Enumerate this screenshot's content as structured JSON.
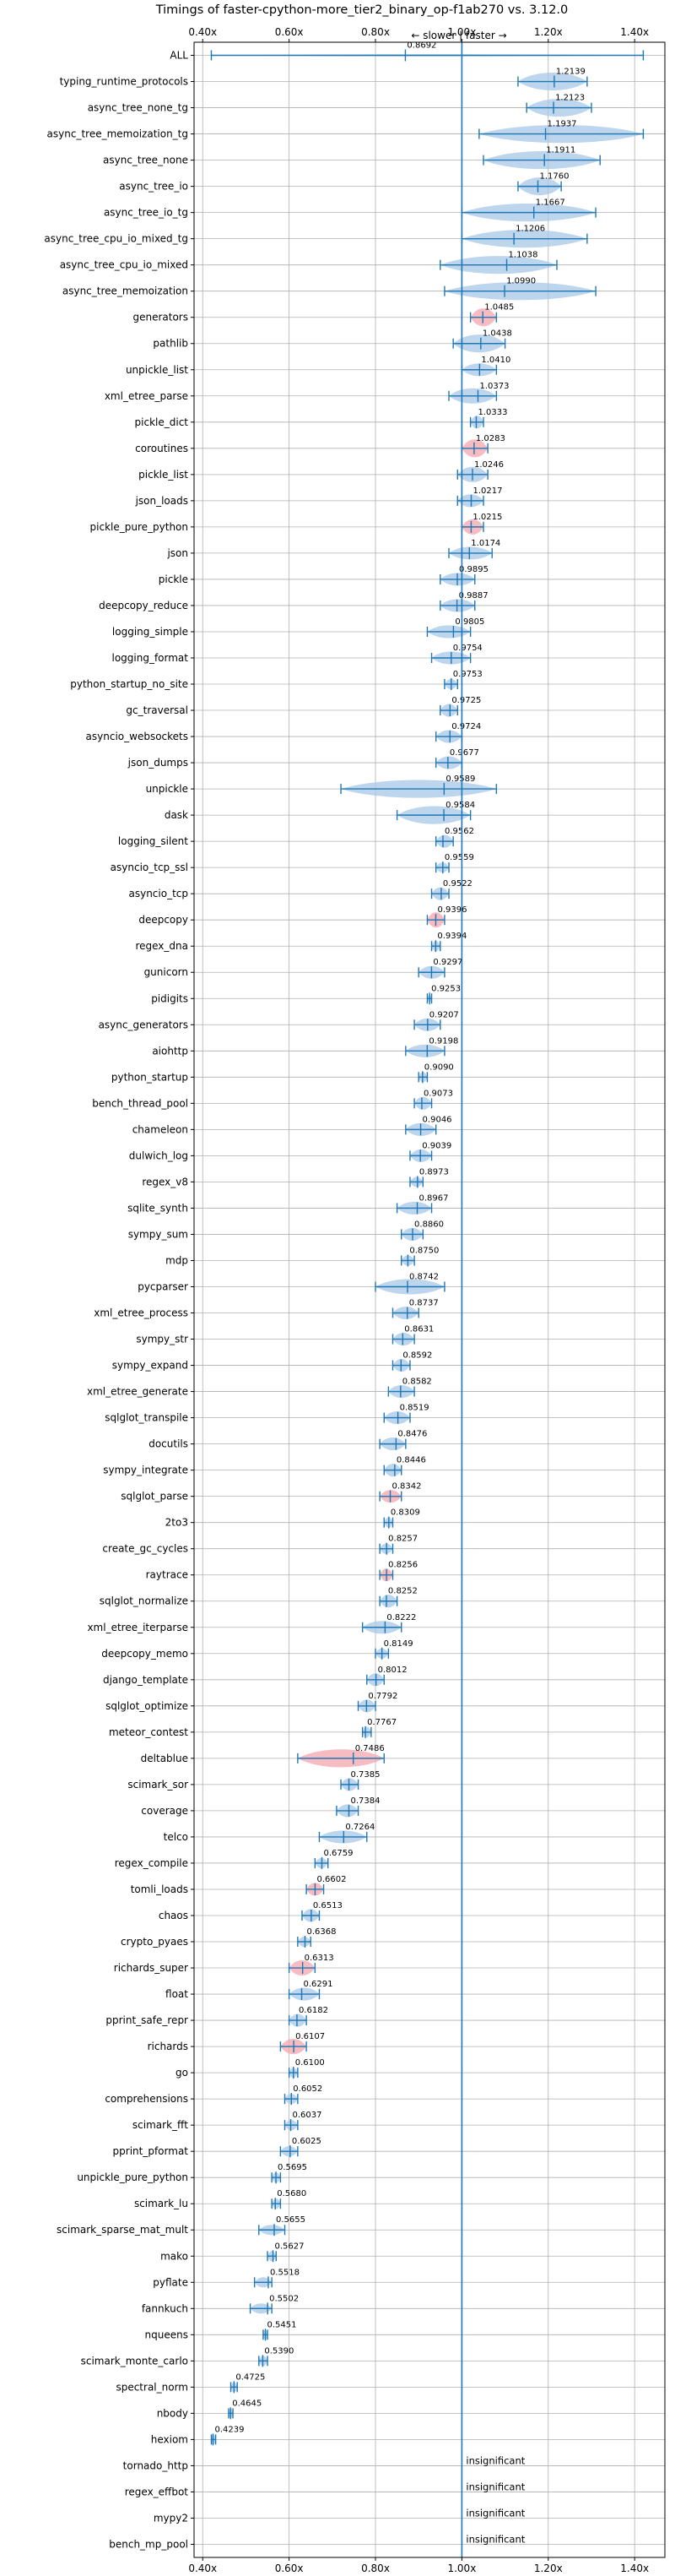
{
  "chart_data": {
    "type": "violin",
    "title": "Timings of faster-cpython-more_tier2_binary_op-f1ab270 vs. 3.12.0",
    "top_annotation": "← slower | faster →",
    "xlim": [
      0.38,
      1.47
    ],
    "x_ticks": [
      0.4,
      0.6,
      0.8,
      1.0,
      1.2,
      1.4
    ],
    "x_tick_labels": [
      "0.40x",
      "0.60x",
      "0.80x",
      "1.00x",
      "1.20x",
      "1.40x"
    ],
    "reference_line": 1.0,
    "grid": true,
    "colors": {
      "faster": "#a7c7e7",
      "slower": "#f4a6ad",
      "whisker": "#1f77b4",
      "reference": "#1f77b4"
    },
    "insignificant_label": "insignificant",
    "benchmarks": [
      {
        "name": "ALL",
        "value": 0.8692,
        "label": "0.8692",
        "lo": 0.42,
        "hi": 1.42,
        "w": 0.08,
        "color": "faster"
      },
      {
        "name": "typing_runtime_protocols",
        "value": 1.2139,
        "label": "1.2139",
        "lo": 1.13,
        "hi": 1.29,
        "w": 0.7,
        "color": "faster"
      },
      {
        "name": "async_tree_none_tg",
        "value": 1.2123,
        "label": "1.2123",
        "lo": 1.15,
        "hi": 1.3,
        "w": 0.7,
        "color": "faster"
      },
      {
        "name": "async_tree_memoization_tg",
        "value": 1.1937,
        "label": "1.1937",
        "lo": 1.04,
        "hi": 1.42,
        "w": 0.7,
        "color": "faster"
      },
      {
        "name": "async_tree_none",
        "value": 1.1911,
        "label": "1.1911",
        "lo": 1.05,
        "hi": 1.32,
        "w": 0.7,
        "color": "faster"
      },
      {
        "name": "async_tree_io",
        "value": 1.176,
        "label": "1.1760",
        "lo": 1.13,
        "hi": 1.23,
        "w": 0.7,
        "color": "faster"
      },
      {
        "name": "async_tree_io_tg",
        "value": 1.1667,
        "label": "1.1667",
        "lo": 1.0,
        "hi": 1.31,
        "w": 0.7,
        "color": "faster"
      },
      {
        "name": "async_tree_cpu_io_mixed_tg",
        "value": 1.1206,
        "label": "1.1206",
        "lo": 1.0,
        "hi": 1.29,
        "w": 0.7,
        "color": "faster"
      },
      {
        "name": "async_tree_cpu_io_mixed",
        "value": 1.1038,
        "label": "1.1038",
        "lo": 0.95,
        "hi": 1.22,
        "w": 0.7,
        "color": "faster"
      },
      {
        "name": "async_tree_memoization",
        "value": 1.099,
        "label": "1.0990",
        "lo": 0.96,
        "hi": 1.31,
        "w": 0.7,
        "color": "faster"
      },
      {
        "name": "generators",
        "value": 1.0485,
        "label": "1.0485",
        "lo": 1.02,
        "hi": 1.08,
        "w": 0.7,
        "color": "slower"
      },
      {
        "name": "pathlib",
        "value": 1.0438,
        "label": "1.0438",
        "lo": 0.98,
        "hi": 1.1,
        "w": 0.7,
        "color": "faster"
      },
      {
        "name": "unpickle_list",
        "value": 1.041,
        "label": "1.0410",
        "lo": 1.0,
        "hi": 1.08,
        "w": 0.5,
        "color": "faster"
      },
      {
        "name": "xml_etree_parse",
        "value": 1.0373,
        "label": "1.0373",
        "lo": 0.97,
        "hi": 1.08,
        "w": 0.6,
        "color": "faster"
      },
      {
        "name": "pickle_dict",
        "value": 1.0333,
        "label": "1.0333",
        "lo": 1.02,
        "hi": 1.05,
        "w": 0.5,
        "color": "faster"
      },
      {
        "name": "coroutines",
        "value": 1.0283,
        "label": "1.0283",
        "lo": 1.0,
        "hi": 1.06,
        "w": 0.7,
        "color": "slower"
      },
      {
        "name": "pickle_list",
        "value": 1.0246,
        "label": "1.0246",
        "lo": 0.99,
        "hi": 1.06,
        "w": 0.6,
        "color": "faster"
      },
      {
        "name": "json_loads",
        "value": 1.0217,
        "label": "1.0217",
        "lo": 0.99,
        "hi": 1.05,
        "w": 0.5,
        "color": "faster"
      },
      {
        "name": "pickle_pure_python",
        "value": 1.0215,
        "label": "1.0215",
        "lo": 1.0,
        "hi": 1.05,
        "w": 0.6,
        "color": "slower"
      },
      {
        "name": "json",
        "value": 1.0174,
        "label": "1.0174",
        "lo": 0.97,
        "hi": 1.07,
        "w": 0.5,
        "color": "faster"
      },
      {
        "name": "pickle",
        "value": 0.9895,
        "label": "0.9895",
        "lo": 0.95,
        "hi": 1.03,
        "w": 0.5,
        "color": "faster"
      },
      {
        "name": "deepcopy_reduce",
        "value": 0.9887,
        "label": "0.9887",
        "lo": 0.95,
        "hi": 1.03,
        "w": 0.5,
        "color": "faster"
      },
      {
        "name": "logging_simple",
        "value": 0.9805,
        "label": "0.9805",
        "lo": 0.92,
        "hi": 1.02,
        "w": 0.5,
        "color": "faster"
      },
      {
        "name": "logging_format",
        "value": 0.9754,
        "label": "0.9754",
        "lo": 0.93,
        "hi": 1.02,
        "w": 0.5,
        "color": "faster"
      },
      {
        "name": "python_startup_no_site",
        "value": 0.9753,
        "label": "0.9753",
        "lo": 0.96,
        "hi": 0.99,
        "w": 0.4,
        "color": "faster"
      },
      {
        "name": "gc_traversal",
        "value": 0.9725,
        "label": "0.9725",
        "lo": 0.95,
        "hi": 0.99,
        "w": 0.5,
        "color": "faster"
      },
      {
        "name": "asyncio_websockets",
        "value": 0.9724,
        "label": "0.9724",
        "lo": 0.94,
        "hi": 1.0,
        "w": 0.5,
        "color": "faster"
      },
      {
        "name": "json_dumps",
        "value": 0.9677,
        "label": "0.9677",
        "lo": 0.94,
        "hi": 1.0,
        "w": 0.5,
        "color": "faster"
      },
      {
        "name": "unpickle",
        "value": 0.9589,
        "label": "0.9589",
        "lo": 0.72,
        "hi": 1.08,
        "w": 0.7,
        "color": "faster"
      },
      {
        "name": "dask",
        "value": 0.9584,
        "label": "0.9584",
        "lo": 0.85,
        "hi": 1.02,
        "w": 0.7,
        "color": "faster"
      },
      {
        "name": "logging_silent",
        "value": 0.9562,
        "label": "0.9562",
        "lo": 0.94,
        "hi": 0.98,
        "w": 0.5,
        "color": "faster"
      },
      {
        "name": "asyncio_tcp_ssl",
        "value": 0.9559,
        "label": "0.9559",
        "lo": 0.94,
        "hi": 0.97,
        "w": 0.4,
        "color": "faster"
      },
      {
        "name": "asyncio_tcp",
        "value": 0.9522,
        "label": "0.9522",
        "lo": 0.93,
        "hi": 0.97,
        "w": 0.5,
        "color": "faster"
      },
      {
        "name": "deepcopy",
        "value": 0.9396,
        "label": "0.9396",
        "lo": 0.92,
        "hi": 0.96,
        "w": 0.6,
        "color": "slower"
      },
      {
        "name": "regex_dna",
        "value": 0.9394,
        "label": "0.9394",
        "lo": 0.93,
        "hi": 0.95,
        "w": 0.4,
        "color": "faster"
      },
      {
        "name": "gunicorn",
        "value": 0.9297,
        "label": "0.9297",
        "lo": 0.9,
        "hi": 0.96,
        "w": 0.5,
        "color": "faster"
      },
      {
        "name": "pidigits",
        "value": 0.9253,
        "label": "0.9253",
        "lo": 0.92,
        "hi": 0.93,
        "w": 0.3,
        "color": "faster"
      },
      {
        "name": "async_generators",
        "value": 0.9207,
        "label": "0.9207",
        "lo": 0.89,
        "hi": 0.95,
        "w": 0.5,
        "color": "faster"
      },
      {
        "name": "aiohttp",
        "value": 0.9198,
        "label": "0.9198",
        "lo": 0.87,
        "hi": 0.96,
        "w": 0.5,
        "color": "faster"
      },
      {
        "name": "python_startup",
        "value": 0.909,
        "label": "0.9090",
        "lo": 0.9,
        "hi": 0.92,
        "w": 0.4,
        "color": "faster"
      },
      {
        "name": "bench_thread_pool",
        "value": 0.9073,
        "label": "0.9073",
        "lo": 0.89,
        "hi": 0.93,
        "w": 0.5,
        "color": "faster"
      },
      {
        "name": "chameleon",
        "value": 0.9046,
        "label": "0.9046",
        "lo": 0.87,
        "hi": 0.94,
        "w": 0.5,
        "color": "faster"
      },
      {
        "name": "dulwich_log",
        "value": 0.9039,
        "label": "0.9039",
        "lo": 0.88,
        "hi": 0.93,
        "w": 0.5,
        "color": "faster"
      },
      {
        "name": "regex_v8",
        "value": 0.8973,
        "label": "0.8973",
        "lo": 0.88,
        "hi": 0.91,
        "w": 0.4,
        "color": "faster"
      },
      {
        "name": "sqlite_synth",
        "value": 0.8967,
        "label": "0.8967",
        "lo": 0.85,
        "hi": 0.93,
        "w": 0.5,
        "color": "faster"
      },
      {
        "name": "sympy_sum",
        "value": 0.886,
        "label": "0.8860",
        "lo": 0.86,
        "hi": 0.91,
        "w": 0.5,
        "color": "faster"
      },
      {
        "name": "mdp",
        "value": 0.875,
        "label": "0.8750",
        "lo": 0.86,
        "hi": 0.89,
        "w": 0.4,
        "color": "faster"
      },
      {
        "name": "pycparser",
        "value": 0.8742,
        "label": "0.8742",
        "lo": 0.8,
        "hi": 0.96,
        "w": 0.6,
        "color": "faster"
      },
      {
        "name": "xml_etree_process",
        "value": 0.8737,
        "label": "0.8737",
        "lo": 0.84,
        "hi": 0.9,
        "w": 0.5,
        "color": "faster"
      },
      {
        "name": "sympy_str",
        "value": 0.8631,
        "label": "0.8631",
        "lo": 0.84,
        "hi": 0.89,
        "w": 0.5,
        "color": "faster"
      },
      {
        "name": "sympy_expand",
        "value": 0.8592,
        "label": "0.8592",
        "lo": 0.84,
        "hi": 0.88,
        "w": 0.5,
        "color": "faster"
      },
      {
        "name": "xml_etree_generate",
        "value": 0.8582,
        "label": "0.8582",
        "lo": 0.83,
        "hi": 0.89,
        "w": 0.5,
        "color": "faster"
      },
      {
        "name": "sqlglot_transpile",
        "value": 0.8519,
        "label": "0.8519",
        "lo": 0.82,
        "hi": 0.88,
        "w": 0.5,
        "color": "faster"
      },
      {
        "name": "docutils",
        "value": 0.8476,
        "label": "0.8476",
        "lo": 0.81,
        "hi": 0.87,
        "w": 0.5,
        "color": "faster"
      },
      {
        "name": "sympy_integrate",
        "value": 0.8446,
        "label": "0.8446",
        "lo": 0.82,
        "hi": 0.86,
        "w": 0.5,
        "color": "faster"
      },
      {
        "name": "sqlglot_parse",
        "value": 0.8342,
        "label": "0.8342",
        "lo": 0.81,
        "hi": 0.86,
        "w": 0.5,
        "color": "slower"
      },
      {
        "name": "2to3",
        "value": 0.8309,
        "label": "0.8309",
        "lo": 0.82,
        "hi": 0.84,
        "w": 0.4,
        "color": "faster"
      },
      {
        "name": "create_gc_cycles",
        "value": 0.8257,
        "label": "0.8257",
        "lo": 0.81,
        "hi": 0.84,
        "w": 0.4,
        "color": "faster"
      },
      {
        "name": "raytrace",
        "value": 0.8256,
        "label": "0.8256",
        "lo": 0.81,
        "hi": 0.84,
        "w": 0.5,
        "color": "slower"
      },
      {
        "name": "sqlglot_normalize",
        "value": 0.8252,
        "label": "0.8252",
        "lo": 0.81,
        "hi": 0.85,
        "w": 0.5,
        "color": "faster"
      },
      {
        "name": "xml_etree_iterparse",
        "value": 0.8222,
        "label": "0.8222",
        "lo": 0.77,
        "hi": 0.86,
        "w": 0.5,
        "color": "faster"
      },
      {
        "name": "deepcopy_memo",
        "value": 0.8149,
        "label": "0.8149",
        "lo": 0.8,
        "hi": 0.83,
        "w": 0.4,
        "color": "faster"
      },
      {
        "name": "django_template",
        "value": 0.8012,
        "label": "0.8012",
        "lo": 0.78,
        "hi": 0.82,
        "w": 0.5,
        "color": "faster"
      },
      {
        "name": "sqlglot_optimize",
        "value": 0.7792,
        "label": "0.7792",
        "lo": 0.76,
        "hi": 0.8,
        "w": 0.5,
        "color": "faster"
      },
      {
        "name": "meteor_contest",
        "value": 0.7767,
        "label": "0.7767",
        "lo": 0.77,
        "hi": 0.79,
        "w": 0.4,
        "color": "faster"
      },
      {
        "name": "deltablue",
        "value": 0.7486,
        "label": "0.7486",
        "lo": 0.62,
        "hi": 0.82,
        "w": 0.7,
        "color": "slower"
      },
      {
        "name": "scimark_sor",
        "value": 0.7385,
        "label": "0.7385",
        "lo": 0.72,
        "hi": 0.76,
        "w": 0.5,
        "color": "faster"
      },
      {
        "name": "coverage",
        "value": 0.7384,
        "label": "0.7384",
        "lo": 0.71,
        "hi": 0.76,
        "w": 0.5,
        "color": "faster"
      },
      {
        "name": "telco",
        "value": 0.7264,
        "label": "0.7264",
        "lo": 0.67,
        "hi": 0.78,
        "w": 0.5,
        "color": "faster"
      },
      {
        "name": "regex_compile",
        "value": 0.6759,
        "label": "0.6759",
        "lo": 0.66,
        "hi": 0.69,
        "w": 0.4,
        "color": "faster"
      },
      {
        "name": "tomli_loads",
        "value": 0.6602,
        "label": "0.6602",
        "lo": 0.64,
        "hi": 0.68,
        "w": 0.5,
        "color": "slower"
      },
      {
        "name": "chaos",
        "value": 0.6513,
        "label": "0.6513",
        "lo": 0.63,
        "hi": 0.67,
        "w": 0.5,
        "color": "faster"
      },
      {
        "name": "crypto_pyaes",
        "value": 0.6368,
        "label": "0.6368",
        "lo": 0.62,
        "hi": 0.65,
        "w": 0.4,
        "color": "faster"
      },
      {
        "name": "richards_super",
        "value": 0.6313,
        "label": "0.6313",
        "lo": 0.6,
        "hi": 0.66,
        "w": 0.6,
        "color": "slower"
      },
      {
        "name": "float",
        "value": 0.6291,
        "label": "0.6291",
        "lo": 0.6,
        "hi": 0.67,
        "w": 0.5,
        "color": "faster"
      },
      {
        "name": "pprint_safe_repr",
        "value": 0.6182,
        "label": "0.6182",
        "lo": 0.6,
        "hi": 0.64,
        "w": 0.5,
        "color": "faster"
      },
      {
        "name": "richards",
        "value": 0.6107,
        "label": "0.6107",
        "lo": 0.58,
        "hi": 0.64,
        "w": 0.6,
        "color": "slower"
      },
      {
        "name": "go",
        "value": 0.61,
        "label": "0.6100",
        "lo": 0.6,
        "hi": 0.62,
        "w": 0.4,
        "color": "faster"
      },
      {
        "name": "comprehensions",
        "value": 0.6052,
        "label": "0.6052",
        "lo": 0.59,
        "hi": 0.62,
        "w": 0.4,
        "color": "faster"
      },
      {
        "name": "scimark_fft",
        "value": 0.6037,
        "label": "0.6037",
        "lo": 0.59,
        "hi": 0.62,
        "w": 0.4,
        "color": "faster"
      },
      {
        "name": "pprint_pformat",
        "value": 0.6025,
        "label": "0.6025",
        "lo": 0.58,
        "hi": 0.62,
        "w": 0.4,
        "color": "faster"
      },
      {
        "name": "unpickle_pure_python",
        "value": 0.5695,
        "label": "0.5695",
        "lo": 0.56,
        "hi": 0.58,
        "w": 0.4,
        "color": "faster"
      },
      {
        "name": "scimark_lu",
        "value": 0.568,
        "label": "0.5680",
        "lo": 0.56,
        "hi": 0.58,
        "w": 0.4,
        "color": "faster"
      },
      {
        "name": "scimark_sparse_mat_mult",
        "value": 0.5655,
        "label": "0.5655",
        "lo": 0.53,
        "hi": 0.59,
        "w": 0.4,
        "color": "faster"
      },
      {
        "name": "mako",
        "value": 0.5627,
        "label": "0.5627",
        "lo": 0.55,
        "hi": 0.57,
        "w": 0.4,
        "color": "faster"
      },
      {
        "name": "pyflate",
        "value": 0.5518,
        "label": "0.5518",
        "lo": 0.52,
        "hi": 0.56,
        "w": 0.4,
        "color": "faster"
      },
      {
        "name": "fannkuch",
        "value": 0.5502,
        "label": "0.5502",
        "lo": 0.51,
        "hi": 0.56,
        "w": 0.4,
        "color": "faster"
      },
      {
        "name": "nqueens",
        "value": 0.5451,
        "label": "0.5451",
        "lo": 0.54,
        "hi": 0.55,
        "w": 0.4,
        "color": "faster"
      },
      {
        "name": "scimark_monte_carlo",
        "value": 0.539,
        "label": "0.5390",
        "lo": 0.53,
        "hi": 0.55,
        "w": 0.4,
        "color": "faster"
      },
      {
        "name": "spectral_norm",
        "value": 0.4725,
        "label": "0.4725",
        "lo": 0.465,
        "hi": 0.48,
        "w": 0.4,
        "color": "faster"
      },
      {
        "name": "nbody",
        "value": 0.4645,
        "label": "0.4645",
        "lo": 0.46,
        "hi": 0.47,
        "w": 0.4,
        "color": "faster"
      },
      {
        "name": "hexiom",
        "value": 0.4239,
        "label": "0.4239",
        "lo": 0.42,
        "hi": 0.43,
        "w": 0.4,
        "color": "faster"
      },
      {
        "name": "tornado_http",
        "value": null,
        "label": "insignificant"
      },
      {
        "name": "regex_effbot",
        "value": null,
        "label": "insignificant"
      },
      {
        "name": "mypy2",
        "value": null,
        "label": "insignificant"
      },
      {
        "name": "bench_mp_pool",
        "value": null,
        "label": "insignificant"
      }
    ]
  }
}
